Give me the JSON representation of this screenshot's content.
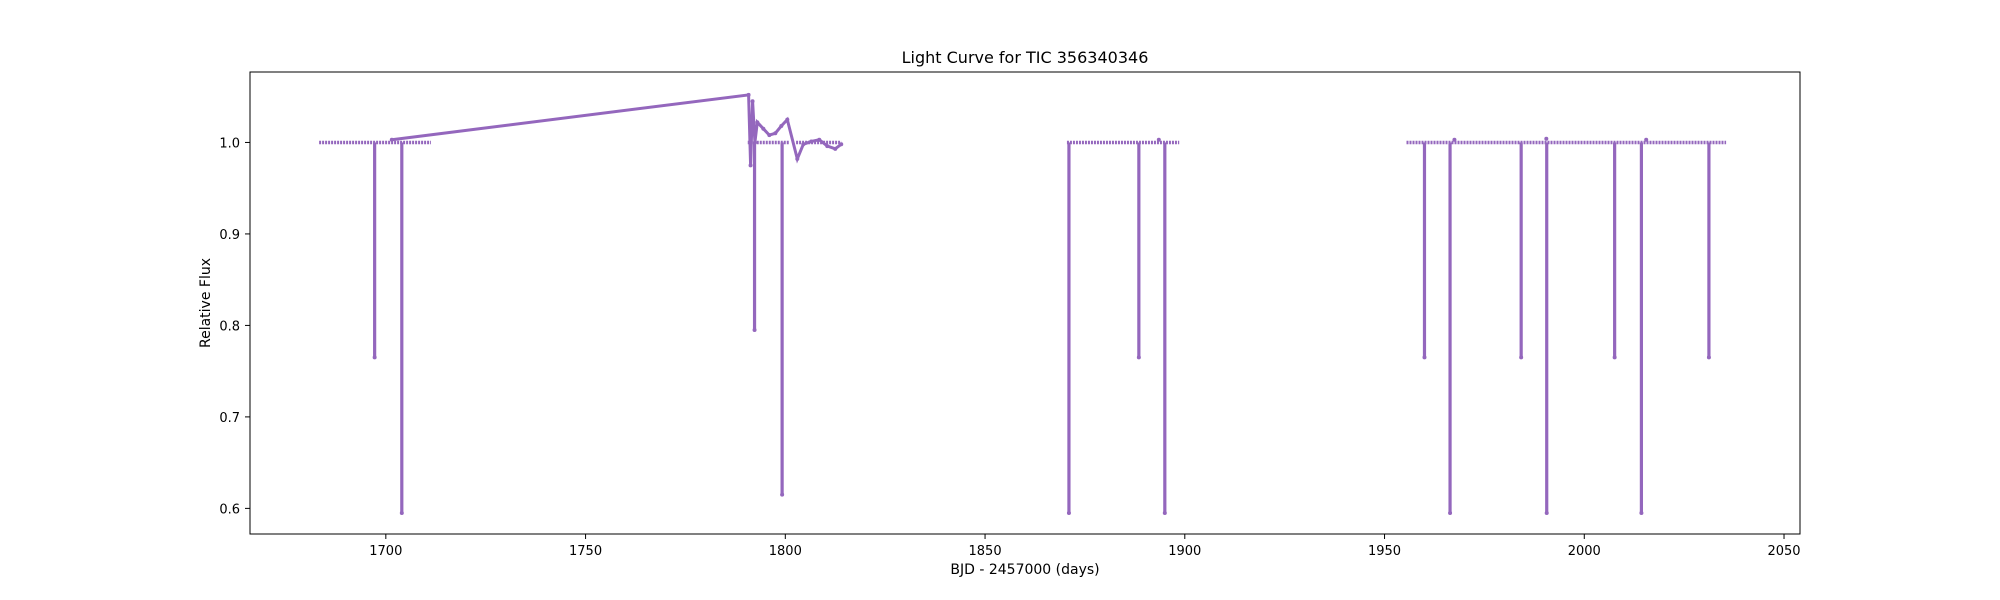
{
  "chart_data": {
    "type": "scatter",
    "title": "Light Curve for TIC 356340346",
    "xlabel": "BJD - 2457000 (days)",
    "ylabel": "Relative Flux",
    "xlim": [
      1666,
      2054
    ],
    "ylim": [
      0.572,
      1.077
    ],
    "xticks": [
      1700,
      1750,
      1800,
      1850,
      1900,
      1950,
      2000,
      2050
    ],
    "yticks": [
      0.6,
      0.7,
      0.8,
      0.9,
      1.0
    ],
    "ytick_labels": [
      "0.6",
      "0.7",
      "0.8",
      "0.9",
      "1.0"
    ],
    "grid": false,
    "legend": "none",
    "color": "#9467bd",
    "baseline": 1.0,
    "segments": [
      {
        "x": [
          1683.3,
          1711.3
        ]
      },
      {
        "x": [
          1790.6,
          1801.0
        ]
      },
      {
        "x": [
          1802.7,
          1814.0
        ]
      },
      {
        "x": [
          1870.5,
          1898.6
        ]
      },
      {
        "x": [
          1955.5,
          2035.5
        ]
      }
    ],
    "features": [
      {
        "x": 1790.8,
        "y": 1.052
      },
      {
        "x": 1791.3,
        "y": 0.975
      },
      {
        "x": 1791.8,
        "y": 1.045
      },
      {
        "x": 1792.4,
        "y": 1.0
      },
      {
        "x": 1793.0,
        "y": 1.022
      },
      {
        "x": 1794.5,
        "y": 1.015
      },
      {
        "x": 1796.0,
        "y": 1.008
      },
      {
        "x": 1797.5,
        "y": 1.01
      },
      {
        "x": 1799.0,
        "y": 1.018
      },
      {
        "x": 1800.5,
        "y": 1.025
      },
      {
        "x": 1803.0,
        "y": 0.982
      },
      {
        "x": 1804.5,
        "y": 0.998
      },
      {
        "x": 1806.5,
        "y": 1.001
      },
      {
        "x": 1808.5,
        "y": 1.003
      },
      {
        "x": 1810.5,
        "y": 0.996
      },
      {
        "x": 1812.5,
        "y": 0.993
      },
      {
        "x": 1814.0,
        "y": 0.998
      },
      {
        "x": 1701.5,
        "y": 1.003
      },
      {
        "x": 1893.5,
        "y": 1.003
      },
      {
        "x": 1967.5,
        "y": 1.003
      },
      {
        "x": 1990.5,
        "y": 1.004
      },
      {
        "x": 2015.5,
        "y": 1.003
      }
    ],
    "eclipses": [
      {
        "center": 1697.2,
        "depth": 0.765
      },
      {
        "center": 1704.0,
        "depth": 0.595
      },
      {
        "center": 1792.3,
        "depth": 0.795
      },
      {
        "center": 1799.2,
        "depth": 0.615
      },
      {
        "center": 1871.0,
        "depth": 0.595
      },
      {
        "center": 1888.5,
        "depth": 0.765
      },
      {
        "center": 1895.0,
        "depth": 0.595
      },
      {
        "center": 1960.0,
        "depth": 0.765
      },
      {
        "center": 1966.4,
        "depth": 0.595
      },
      {
        "center": 1984.2,
        "depth": 0.765
      },
      {
        "center": 1990.6,
        "depth": 0.595
      },
      {
        "center": 2007.6,
        "depth": 0.765
      },
      {
        "center": 2014.3,
        "depth": 0.595
      },
      {
        "center": 2031.2,
        "depth": 0.765
      }
    ]
  }
}
